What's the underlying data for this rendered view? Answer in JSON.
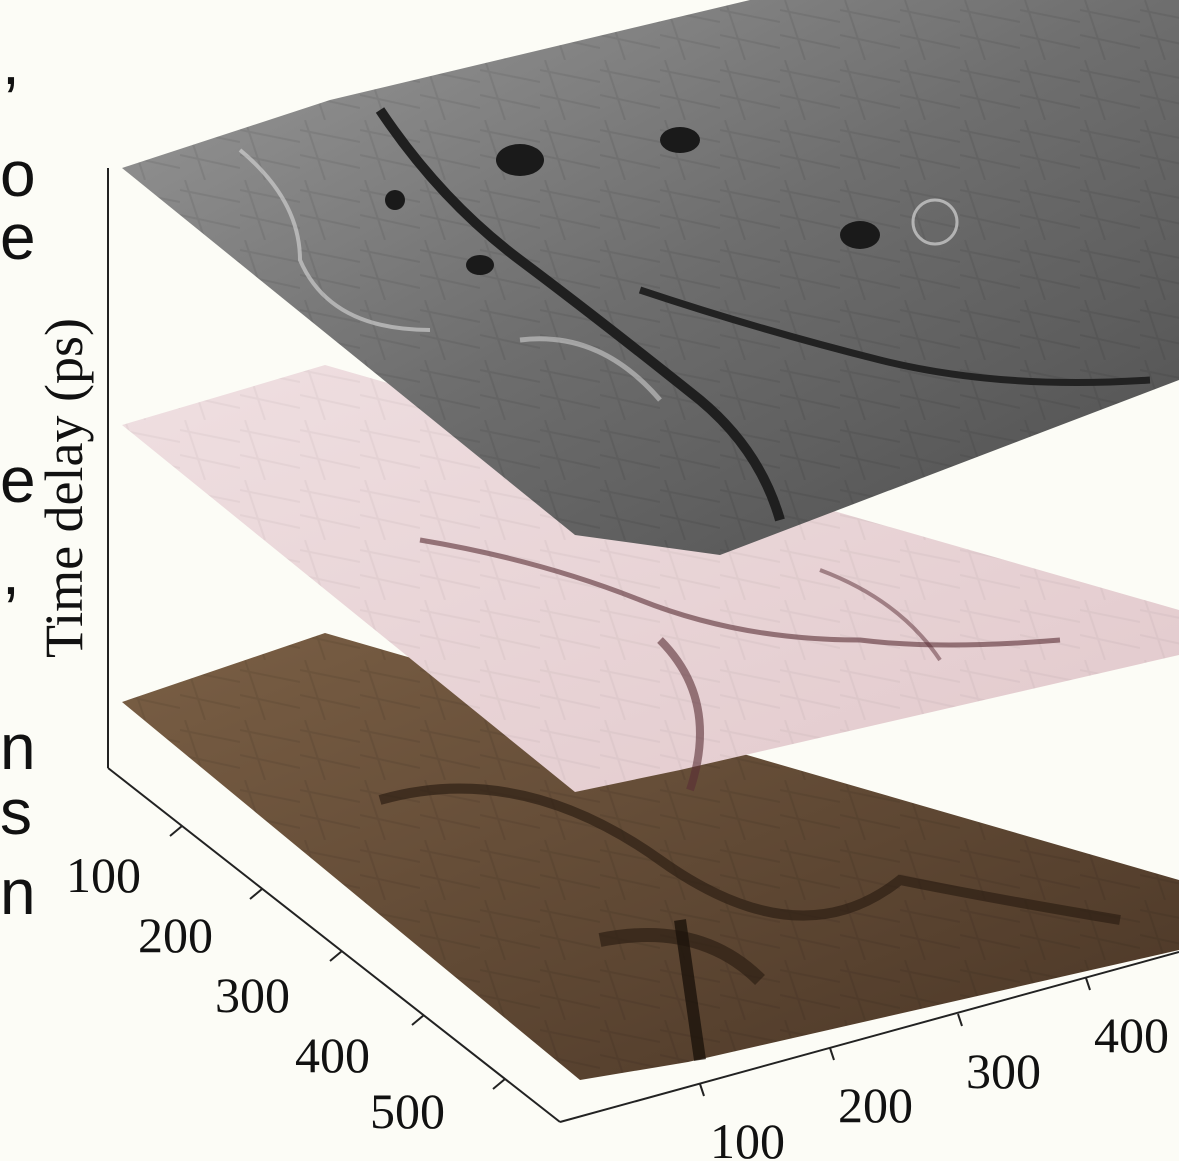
{
  "margin_glyphs": [
    ",",
    "o",
    "e",
    "e",
    ",",
    "n",
    "s",
    "n"
  ],
  "chart_data": {
    "type": "surface3d",
    "title": "",
    "xlabel": "",
    "ylabel": "",
    "zlabel": "Time delay (ps)",
    "x_ticks": [
      "100",
      "200",
      "300",
      "400"
    ],
    "y_ticks": [
      "100",
      "200",
      "300",
      "400",
      "500"
    ],
    "grid": false,
    "layers": [
      {
        "position": "top",
        "colormap": "grayscale",
        "color": "#6e6e6e"
      },
      {
        "position": "middle",
        "colormap": "pink",
        "color": "#e8cfd2"
      },
      {
        "position": "bottom",
        "colormap": "copper",
        "color": "#6a5037"
      }
    ]
  }
}
